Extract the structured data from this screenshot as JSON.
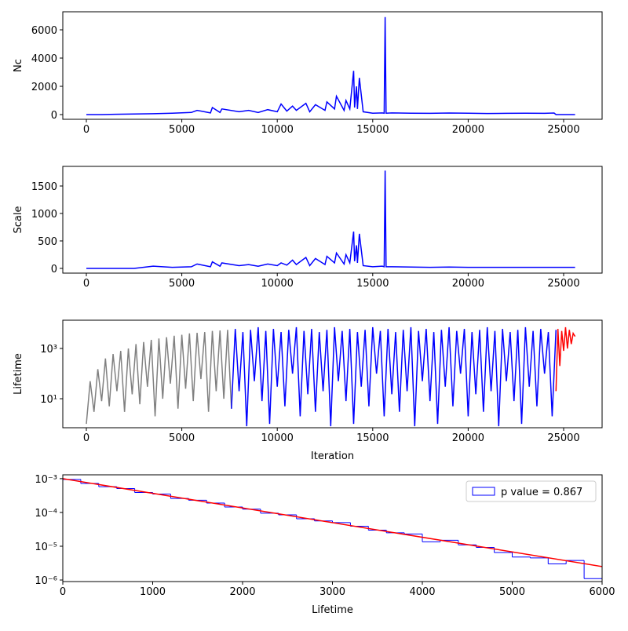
{
  "chart_data": [
    {
      "type": "line",
      "ylabel": "Nc",
      "xlim": [
        -1234,
        27015
      ],
      "ylim": [
        -333,
        7278
      ],
      "xticks": [
        0,
        5000,
        10000,
        15000,
        20000,
        25000
      ],
      "yticks": [
        0,
        2000,
        4000,
        6000
      ],
      "series": [
        {
          "color": "#0000ff",
          "x": [
            0,
            800,
            1500,
            2500,
            3500,
            4500,
            5500,
            5800,
            6500,
            6600,
            7000,
            7100,
            8000,
            8500,
            9000,
            9500,
            10000,
            10200,
            10500,
            10800,
            11000,
            11500,
            11700,
            12000,
            12500,
            12600,
            13000,
            13100,
            13500,
            13600,
            13800,
            14000,
            14050,
            14150,
            14200,
            14300,
            14500,
            15000,
            15500,
            15600,
            15650,
            15700,
            16000,
            17000,
            18000,
            19000,
            20000,
            21000,
            22000,
            23000,
            24000,
            24500,
            24600,
            25600
          ],
          "values": [
            0,
            0,
            20,
            40,
            60,
            100,
            150,
            300,
            120,
            500,
            150,
            400,
            200,
            300,
            150,
            350,
            200,
            750,
            250,
            600,
            300,
            800,
            200,
            700,
            300,
            900,
            400,
            1300,
            300,
            1000,
            400,
            3100,
            500,
            2000,
            400,
            2600,
            200,
            100,
            120,
            100,
            6900,
            100,
            120,
            100,
            90,
            110,
            100,
            80,
            90,
            100,
            90,
            110,
            0,
            0
          ]
        }
      ]
    },
    {
      "type": "line",
      "ylabel": "Scale",
      "xlim": [
        -1234,
        27015
      ],
      "ylim": [
        -86,
        1857
      ],
      "xticks": [
        0,
        5000,
        10000,
        15000,
        20000,
        25000
      ],
      "yticks": [
        0,
        500,
        1000,
        1500
      ],
      "series": [
        {
          "color": "#0000ff",
          "x": [
            0,
            800,
            1500,
            2500,
            3500,
            4500,
            5500,
            5800,
            6500,
            6600,
            7000,
            7100,
            8000,
            8500,
            9000,
            9500,
            10000,
            10200,
            10500,
            10800,
            11000,
            11500,
            11700,
            12000,
            12500,
            12600,
            13000,
            13100,
            13500,
            13600,
            13800,
            14000,
            14050,
            14150,
            14200,
            14300,
            14500,
            15000,
            15500,
            15600,
            15650,
            15700,
            16000,
            17000,
            18000,
            19000,
            20000,
            21000,
            22000,
            23000,
            24000,
            24500,
            24600,
            25600
          ],
          "values": [
            0,
            0,
            0,
            0,
            40,
            20,
            30,
            80,
            30,
            120,
            40,
            100,
            50,
            70,
            40,
            80,
            50,
            100,
            60,
            150,
            70,
            200,
            50,
            180,
            70,
            220,
            100,
            280,
            80,
            250,
            100,
            670,
            130,
            420,
            100,
            630,
            50,
            30,
            40,
            30,
            1780,
            30,
            30,
            25,
            20,
            25,
            20,
            20,
            20,
            20,
            20,
            20,
            20,
            20
          ]
        }
      ]
    },
    {
      "type": "line",
      "ylabel": "Lifetime",
      "xlabel": "Iteration",
      "yscale": "log",
      "xlim": [
        -1234,
        27015
      ],
      "ylim": [
        0.7,
        13335
      ],
      "xticks": [
        0,
        5000,
        10000,
        15000,
        20000,
        25000
      ],
      "yticks": [
        {
          "value": 10,
          "label": "10¹"
        },
        {
          "value": 1000,
          "label": "10³"
        }
      ],
      "series": [
        {
          "color": "#808080",
          "x": [
            0,
            200,
            400,
            600,
            800,
            1000,
            1200,
            1400,
            1600,
            1800,
            2000,
            2200,
            2400,
            2600,
            2800,
            3000,
            3200,
            3400,
            3600,
            3800,
            4000,
            4200,
            4400,
            4600,
            4800,
            5000,
            5200,
            5400,
            5600,
            5800,
            6000,
            6200,
            6400,
            6600,
            6800,
            7000,
            7200,
            7400,
            7600
          ],
          "values": [
            1,
            50,
            3,
            150,
            8,
            400,
            5,
            600,
            20,
            800,
            3,
            1000,
            15,
            1500,
            6,
            1800,
            30,
            2200,
            2,
            2500,
            10,
            2800,
            40,
            3200,
            4,
            3500,
            25,
            4000,
            8,
            4200,
            60,
            4500,
            3,
            5000,
            20,
            5200,
            10,
            5500,
            4
          ]
        },
        {
          "color": "#0000ff",
          "x": [
            7600,
            7800,
            8000,
            8200,
            8400,
            8600,
            8800,
            9000,
            9200,
            9400,
            9600,
            9800,
            10000,
            10200,
            10400,
            10600,
            10800,
            11000,
            11200,
            11400,
            11600,
            11800,
            12000,
            12200,
            12400,
            12600,
            12800,
            13000,
            13200,
            13400,
            13600,
            13800,
            14000,
            14200,
            14400,
            14600,
            14800,
            15000,
            15200,
            15400,
            15600,
            15800,
            16000,
            16200,
            16400,
            16600,
            16800,
            17000,
            17200,
            17400,
            17600,
            17800,
            18000,
            18200,
            18400,
            18600,
            18800,
            19000,
            19200,
            19400,
            19600,
            19800,
            20000,
            20200,
            20400,
            20600,
            20800,
            21000,
            21200,
            21400,
            21600,
            21800,
            22000,
            22200,
            22400,
            22600,
            22800,
            23000,
            23200,
            23400,
            23600,
            23800,
            24000,
            24200,
            24400,
            24600
          ],
          "values": [
            4,
            6000,
            20,
            4500,
            0.8,
            5500,
            50,
            7000,
            8,
            5000,
            1,
            6000,
            30,
            4500,
            5,
            5500,
            100,
            7000,
            2,
            5000,
            15,
            6000,
            3,
            4500,
            20,
            5500,
            0.8,
            7000,
            50,
            5000,
            8,
            6000,
            1,
            4500,
            30,
            5500,
            5,
            7000,
            100,
            5000,
            2,
            6000,
            15,
            4500,
            3,
            5500,
            20,
            7000,
            0.8,
            5000,
            50,
            6000,
            8,
            4500,
            1,
            5500,
            30,
            7000,
            5,
            5000,
            100,
            6000,
            2,
            4500,
            15,
            5500,
            3,
            7000,
            20,
            5000,
            0.8,
            6000,
            50,
            4500,
            8,
            5500,
            1,
            7000,
            30,
            5000,
            5,
            6000,
            100,
            4500,
            2,
            5500
          ]
        },
        {
          "color": "#ff0000",
          "x": [
            24600,
            24700,
            24800,
            24900,
            25000,
            25100,
            25200,
            25300,
            25400,
            25500,
            25600
          ],
          "values": [
            20,
            6000,
            200,
            5000,
            800,
            7000,
            1000,
            5500,
            1500,
            4000,
            3000
          ]
        }
      ]
    },
    {
      "type": "histogram",
      "xlabel": "Lifetime",
      "yscale": "log",
      "xlim": [
        0,
        6000
      ],
      "ylim": [
        9e-07,
        0.0013
      ],
      "xticks": [
        0,
        1000,
        2000,
        3000,
        4000,
        5000,
        6000
      ],
      "yticks": [
        {
          "value": 1e-06,
          "label": "10⁻⁶"
        },
        {
          "value": 1e-05,
          "label": "10⁻⁵"
        },
        {
          "value": 0.0001,
          "label": "10⁻⁴"
        },
        {
          "value": 0.001,
          "label": "10⁻³"
        }
      ],
      "legend": "upper right",
      "bins": [
        0,
        200,
        400,
        600,
        800,
        1000,
        1200,
        1400,
        1600,
        1800,
        2000,
        2200,
        2400,
        2600,
        2800,
        3000,
        3200,
        3400,
        3600,
        3800,
        4000,
        4200,
        4400,
        4600,
        4800,
        5000,
        5200,
        5400,
        5600,
        5800,
        6000
      ],
      "series": [
        {
          "name": "p value = 0.867",
          "color": "#0000ff",
          "values": [
            0.00095,
            0.00072,
            0.00058,
            0.00051,
            0.00039,
            0.00035,
            0.00026,
            0.00023,
            0.00019,
            0.000145,
            0.000125,
            9.5e-05,
            8.5e-05,
            6.5e-05,
            5.6e-05,
            5e-05,
            3.9e-05,
            3e-05,
            2.5e-05,
            2.3e-05,
            1.35e-05,
            1.5e-05,
            1.1e-05,
            9.2e-06,
            6.5e-06,
            4.8e-06,
            4.5e-06,
            3e-06,
            3.8e-06,
            1.1e-06
          ]
        }
      ],
      "fit": {
        "color": "#ff0000",
        "x": [
          0,
          6000
        ],
        "values": [
          0.001,
          2.5e-06
        ]
      }
    }
  ]
}
